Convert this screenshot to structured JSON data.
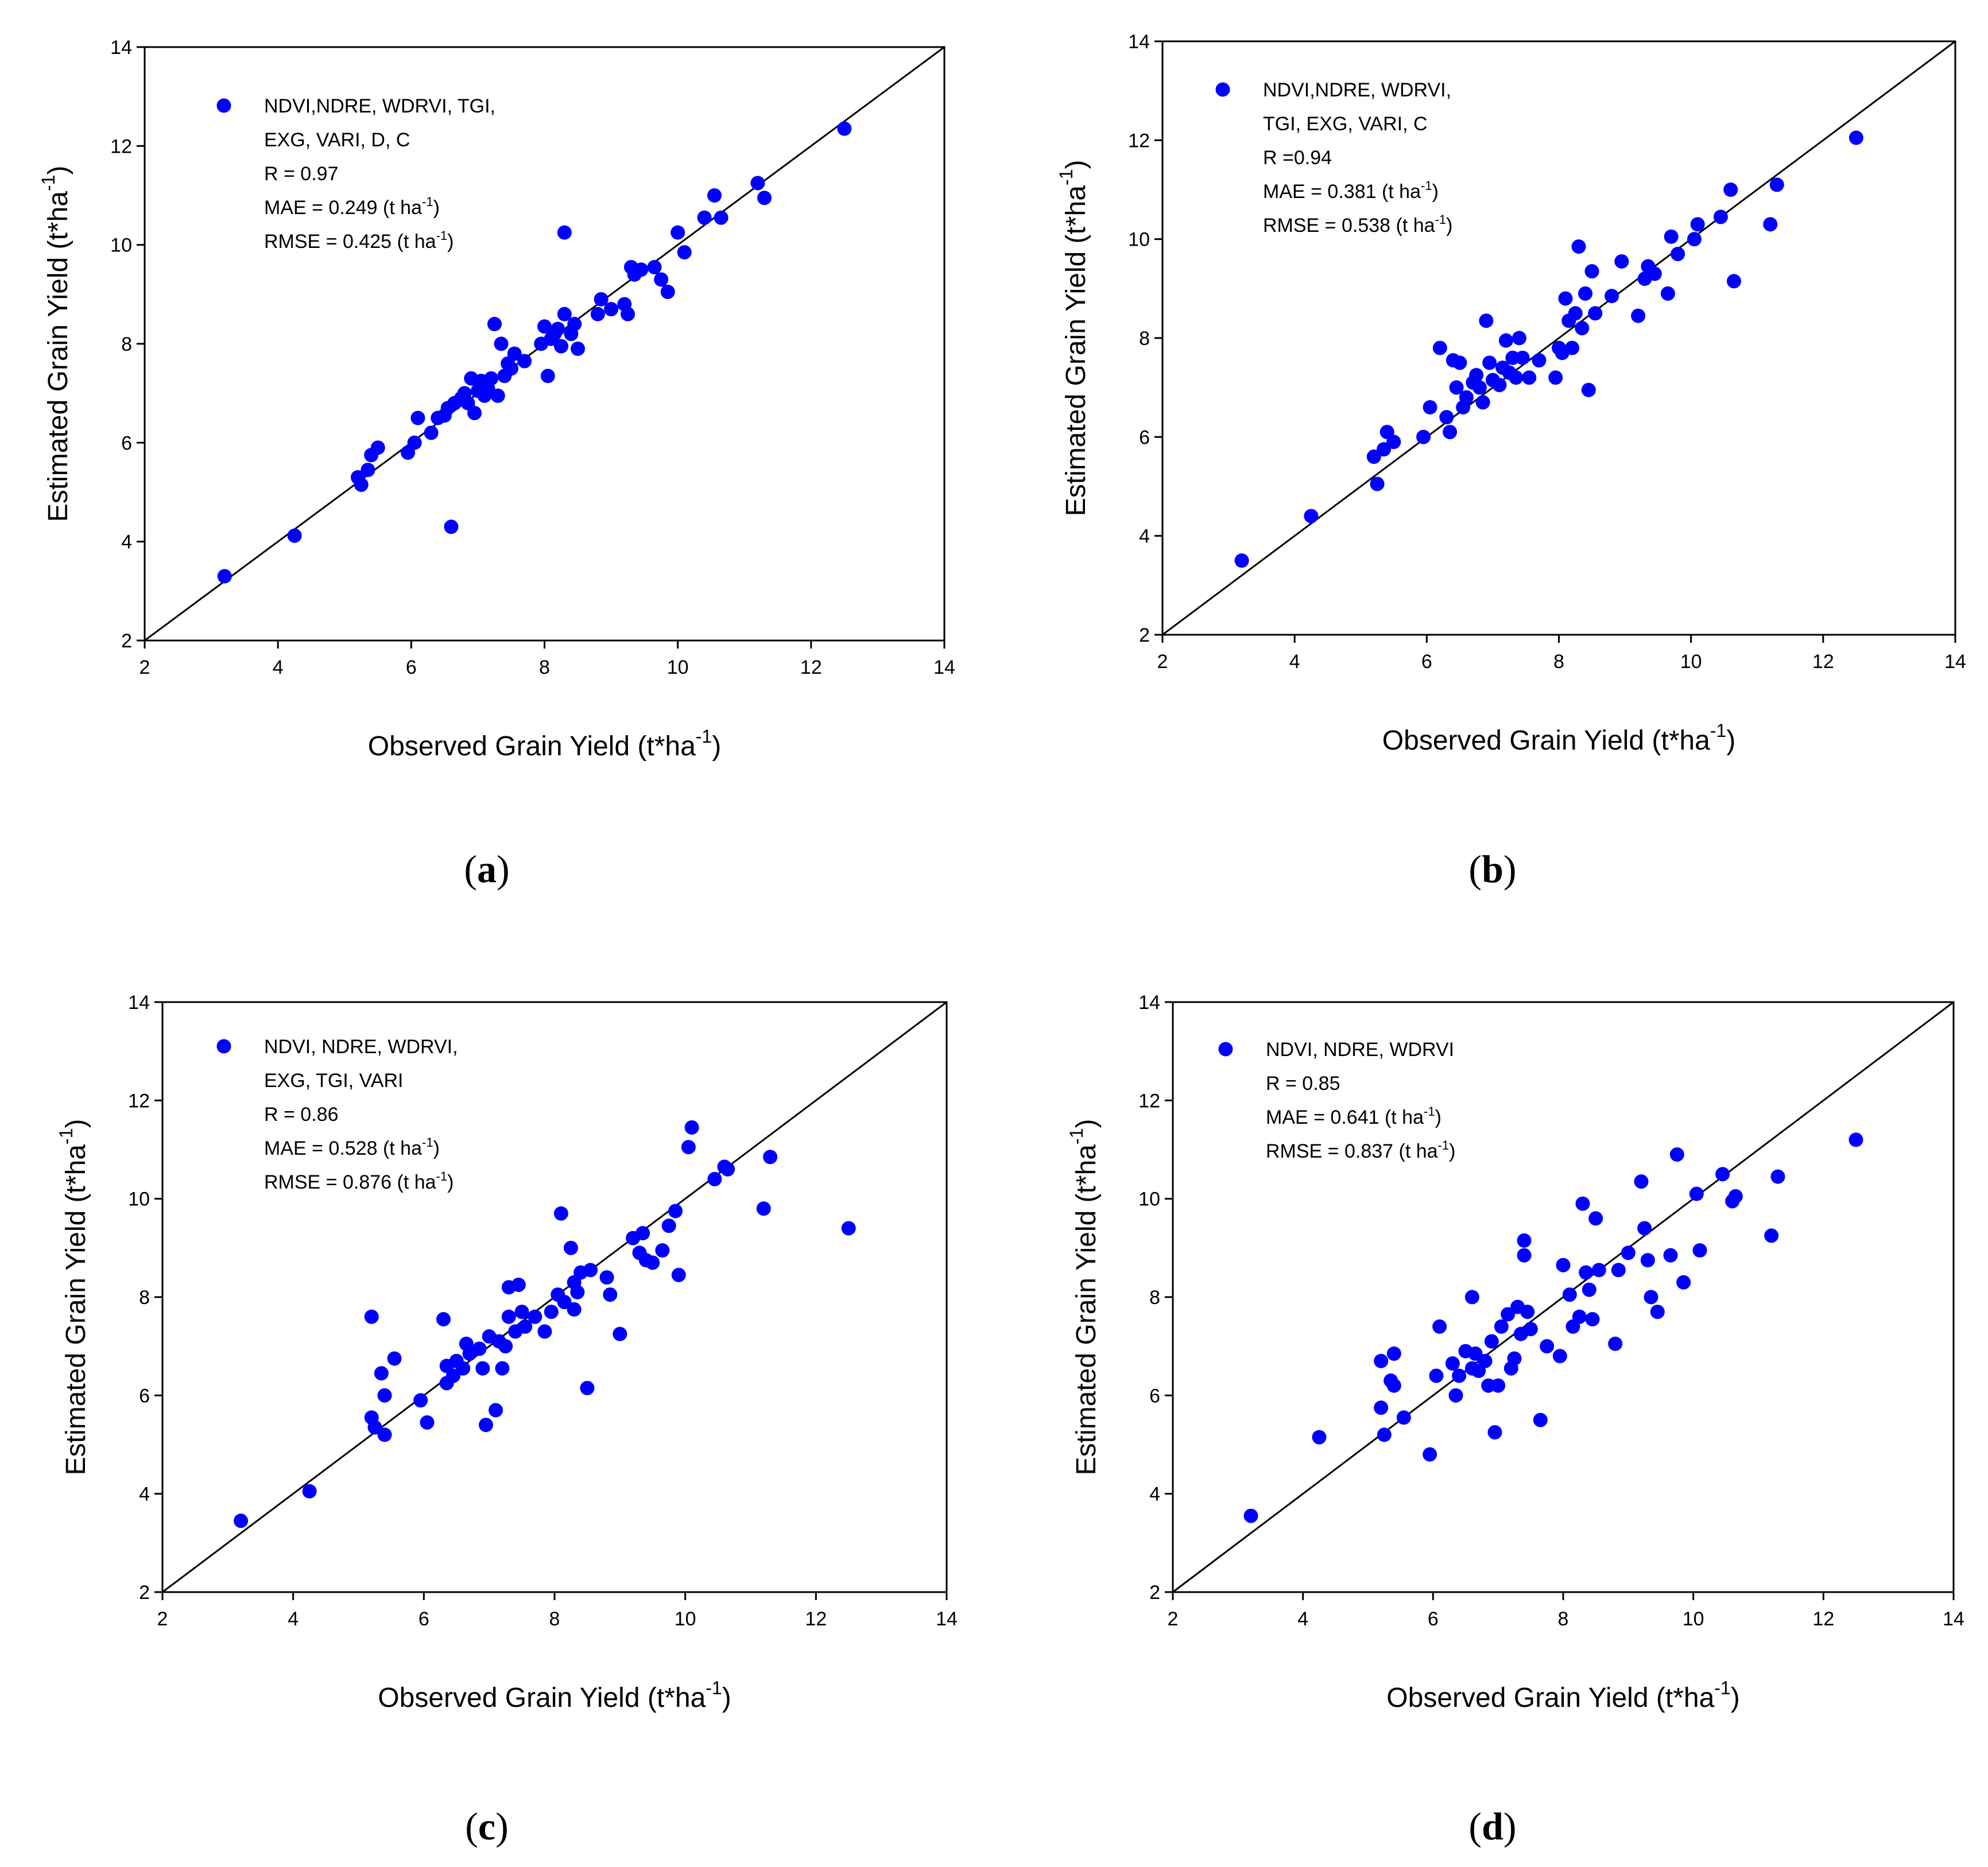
{
  "figure_labels": {
    "paren_open": "(",
    "paren_close": ")"
  },
  "chart_data": [
    {
      "id": "a",
      "type": "scatter",
      "panel_label": "a",
      "xlabel": "Observed Grain Yield (t*ha",
      "ylabel": "Estimated Grain Yield (t*ha",
      "axis_unit_sup": "-1",
      "axis_unit_close": ")",
      "xlim": [
        2,
        14
      ],
      "ylim": [
        2,
        14
      ],
      "xticks": [
        "2",
        "4",
        "6",
        "8",
        "10",
        "12",
        "14"
      ],
      "yticks": [
        "2",
        "4",
        "6",
        "8",
        "10",
        "12",
        "14"
      ],
      "reference_line": "1:1",
      "marker_color": "#0000ff",
      "legend": {
        "lines": [
          "NDVI,NDRE, WDRVI, TGI,",
          " EXG, VARI, D, C"
        ],
        "r_text": "R = 0.97",
        "mae_text": "MAE = 0.249 (t ha",
        "rmse_text": "RMSE = 0.425 (t ha",
        "unit_sup": "-1",
        "unit_close": ")"
      },
      "points": [
        [
          3.2,
          3.3
        ],
        [
          4.25,
          4.12
        ],
        [
          5.2,
          5.3
        ],
        [
          5.25,
          5.15
        ],
        [
          5.35,
          5.45
        ],
        [
          5.4,
          5.75
        ],
        [
          5.5,
          5.9
        ],
        [
          5.95,
          5.8
        ],
        [
          6.05,
          6.0
        ],
        [
          6.1,
          6.5
        ],
        [
          6.3,
          6.2
        ],
        [
          6.4,
          6.5
        ],
        [
          6.5,
          6.55
        ],
        [
          6.55,
          6.7
        ],
        [
          6.6,
          4.3
        ],
        [
          6.65,
          6.8
        ],
        [
          6.75,
          6.9
        ],
        [
          6.8,
          7.0
        ],
        [
          6.85,
          6.8
        ],
        [
          6.9,
          7.3
        ],
        [
          6.95,
          6.6
        ],
        [
          7.0,
          7.05
        ],
        [
          7.05,
          7.25
        ],
        [
          7.1,
          6.95
        ],
        [
          7.15,
          7.1
        ],
        [
          7.2,
          7.3
        ],
        [
          7.25,
          8.4
        ],
        [
          7.3,
          6.95
        ],
        [
          7.35,
          8.0
        ],
        [
          7.4,
          7.35
        ],
        [
          7.45,
          7.6
        ],
        [
          7.5,
          7.5
        ],
        [
          7.55,
          7.8
        ],
        [
          7.7,
          7.65
        ],
        [
          7.95,
          8.0
        ],
        [
          8.0,
          8.35
        ],
        [
          8.05,
          7.35
        ],
        [
          8.1,
          8.1
        ],
        [
          8.15,
          8.2
        ],
        [
          8.2,
          8.3
        ],
        [
          8.25,
          7.95
        ],
        [
          8.3,
          8.6
        ],
        [
          8.3,
          10.25
        ],
        [
          8.4,
          8.2
        ],
        [
          8.45,
          8.4
        ],
        [
          8.5,
          7.9
        ],
        [
          8.8,
          8.6
        ],
        [
          8.85,
          8.9
        ],
        [
          9.0,
          8.7
        ],
        [
          9.2,
          8.8
        ],
        [
          9.25,
          8.6
        ],
        [
          9.3,
          9.55
        ],
        [
          9.35,
          9.4
        ],
        [
          9.45,
          9.5
        ],
        [
          9.65,
          9.55
        ],
        [
          9.75,
          9.3
        ],
        [
          9.85,
          9.05
        ],
        [
          10.0,
          10.25
        ],
        [
          10.1,
          9.85
        ],
        [
          10.4,
          10.55
        ],
        [
          10.55,
          11.0
        ],
        [
          10.65,
          10.55
        ],
        [
          11.2,
          11.25
        ],
        [
          11.3,
          10.95
        ],
        [
          12.5,
          12.35
        ]
      ]
    },
    {
      "id": "b",
      "type": "scatter",
      "panel_label": "b",
      "xlabel": "Observed Grain Yield (t*ha",
      "ylabel": "Estimated Grain Yield (t*ha",
      "axis_unit_sup": "-1",
      "axis_unit_close": ")",
      "xlim": [
        2,
        14
      ],
      "ylim": [
        2,
        14
      ],
      "xticks": [
        "2",
        "4",
        "6",
        "8",
        "10",
        "12",
        "14"
      ],
      "yticks": [
        "2",
        "4",
        "6",
        "8",
        "10",
        "12",
        "14"
      ],
      "reference_line": "1:1",
      "marker_color": "#0000ff",
      "legend": {
        "lines": [
          "NDVI,NDRE, WDRVI,",
          "TGI, EXG, VARI, C"
        ],
        "r_text": "R =0.94",
        "mae_text": "MAE = 0.381 (t ha",
        "rmse_text": "RMSE = 0.538 (t ha",
        "unit_sup": "-1",
        "unit_close": ")"
      },
      "points": [
        [
          3.2,
          3.5
        ],
        [
          4.25,
          4.4
        ],
        [
          5.2,
          5.6
        ],
        [
          5.25,
          5.05
        ],
        [
          5.35,
          5.75
        ],
        [
          5.4,
          6.1
        ],
        [
          5.5,
          5.9
        ],
        [
          5.95,
          6.0
        ],
        [
          6.05,
          6.6
        ],
        [
          6.2,
          7.8
        ],
        [
          6.3,
          6.4
        ],
        [
          6.35,
          6.1
        ],
        [
          6.4,
          7.55
        ],
        [
          6.45,
          7.0
        ],
        [
          6.5,
          7.5
        ],
        [
          6.55,
          6.6
        ],
        [
          6.6,
          6.8
        ],
        [
          6.7,
          7.1
        ],
        [
          6.75,
          7.25
        ],
        [
          6.8,
          7.0
        ],
        [
          6.85,
          6.7
        ],
        [
          6.9,
          8.35
        ],
        [
          6.95,
          7.5
        ],
        [
          7.0,
          7.15
        ],
        [
          7.1,
          7.05
        ],
        [
          7.15,
          7.4
        ],
        [
          7.2,
          7.95
        ],
        [
          7.25,
          7.3
        ],
        [
          7.3,
          7.6
        ],
        [
          7.35,
          7.2
        ],
        [
          7.4,
          8.0
        ],
        [
          7.45,
          7.6
        ],
        [
          7.55,
          7.2
        ],
        [
          7.7,
          7.55
        ],
        [
          7.95,
          7.2
        ],
        [
          8.0,
          7.8
        ],
        [
          8.05,
          7.7
        ],
        [
          8.1,
          8.8
        ],
        [
          8.15,
          8.35
        ],
        [
          8.2,
          7.8
        ],
        [
          8.25,
          8.5
        ],
        [
          8.3,
          9.85
        ],
        [
          8.35,
          8.2
        ],
        [
          8.4,
          8.9
        ],
        [
          8.45,
          6.95
        ],
        [
          8.5,
          9.35
        ],
        [
          8.55,
          8.5
        ],
        [
          8.8,
          8.85
        ],
        [
          8.95,
          9.55
        ],
        [
          9.2,
          8.45
        ],
        [
          9.3,
          9.2
        ],
        [
          9.35,
          9.45
        ],
        [
          9.45,
          9.3
        ],
        [
          9.65,
          8.9
        ],
        [
          9.7,
          10.05
        ],
        [
          9.8,
          9.7
        ],
        [
          10.05,
          10.0
        ],
        [
          10.1,
          10.3
        ],
        [
          10.45,
          10.45
        ],
        [
          10.6,
          11.0
        ],
        [
          10.65,
          9.15
        ],
        [
          11.2,
          10.3
        ],
        [
          11.3,
          11.1
        ],
        [
          12.5,
          12.05
        ]
      ]
    },
    {
      "id": "c",
      "type": "scatter",
      "panel_label": "c",
      "xlabel": "Observed Grain Yield (t*ha",
      "ylabel": "Estimated Grain Yield (t*ha",
      "axis_unit_sup": "-1",
      "axis_unit_close": ")",
      "xlim": [
        2,
        14
      ],
      "ylim": [
        2,
        14
      ],
      "xticks": [
        "2",
        "4",
        "6",
        "8",
        "10",
        "12",
        "14"
      ],
      "yticks": [
        "2",
        "4",
        "6",
        "8",
        "10",
        "12",
        "14"
      ],
      "reference_line": "1:1",
      "marker_color": "#0000ff",
      "legend": {
        "lines": [
          "NDVI, NDRE, WDRVI,",
          "EXG, TGI, VARI"
        ],
        "r_text": "R = 0.86",
        "mae_text": "MAE = 0.528 (t ha",
        "rmse_text": "RMSE = 0.876 (t ha",
        "unit_sup": "-1",
        "unit_close": ")"
      },
      "points": [
        [
          3.2,
          3.45
        ],
        [
          4.25,
          4.05
        ],
        [
          5.2,
          7.6
        ],
        [
          5.2,
          5.55
        ],
        [
          5.25,
          5.35
        ],
        [
          5.35,
          6.45
        ],
        [
          5.4,
          6.0
        ],
        [
          5.4,
          5.2
        ],
        [
          5.55,
          6.75
        ],
        [
          5.95,
          5.9
        ],
        [
          6.05,
          5.45
        ],
        [
          6.3,
          7.55
        ],
        [
          6.35,
          6.6
        ],
        [
          6.35,
          6.25
        ],
        [
          6.45,
          6.4
        ],
        [
          6.5,
          6.7
        ],
        [
          6.6,
          6.55
        ],
        [
          6.65,
          7.05
        ],
        [
          6.7,
          6.85
        ],
        [
          6.85,
          6.95
        ],
        [
          6.9,
          6.55
        ],
        [
          6.95,
          5.4
        ],
        [
          7.0,
          7.2
        ],
        [
          7.1,
          5.7
        ],
        [
          7.15,
          7.1
        ],
        [
          7.2,
          6.55
        ],
        [
          7.25,
          7.0
        ],
        [
          7.3,
          7.6
        ],
        [
          7.3,
          8.2
        ],
        [
          7.4,
          7.3
        ],
        [
          7.45,
          8.25
        ],
        [
          7.5,
          7.7
        ],
        [
          7.55,
          7.4
        ],
        [
          7.7,
          7.6
        ],
        [
          7.85,
          7.3
        ],
        [
          7.95,
          7.7
        ],
        [
          8.05,
          8.05
        ],
        [
          8.1,
          9.7
        ],
        [
          8.15,
          7.9
        ],
        [
          8.25,
          9.0
        ],
        [
          8.3,
          8.3
        ],
        [
          8.3,
          7.75
        ],
        [
          8.35,
          8.1
        ],
        [
          8.4,
          8.5
        ],
        [
          8.5,
          6.15
        ],
        [
          8.55,
          8.55
        ],
        [
          8.8,
          8.4
        ],
        [
          8.85,
          8.05
        ],
        [
          9.0,
          7.25
        ],
        [
          9.2,
          9.2
        ],
        [
          9.3,
          8.9
        ],
        [
          9.35,
          9.3
        ],
        [
          9.4,
          8.75
        ],
        [
          9.5,
          8.7
        ],
        [
          9.65,
          8.95
        ],
        [
          9.75,
          9.45
        ],
        [
          9.85,
          9.75
        ],
        [
          9.9,
          8.45
        ],
        [
          10.05,
          11.05
        ],
        [
          10.1,
          11.45
        ],
        [
          10.45,
          10.4
        ],
        [
          10.6,
          10.65
        ],
        [
          10.65,
          10.6
        ],
        [
          11.2,
          9.8
        ],
        [
          11.3,
          10.85
        ],
        [
          12.5,
          9.4
        ]
      ]
    },
    {
      "id": "d",
      "type": "scatter",
      "panel_label": "d",
      "xlabel": "Observed Grain Yield (t*ha",
      "ylabel": "Estimated Grain Yield (t*ha",
      "axis_unit_sup": "-1",
      "axis_unit_close": ")",
      "xlim": [
        2,
        14
      ],
      "ylim": [
        2,
        14
      ],
      "xticks": [
        "2",
        "4",
        "6",
        "8",
        "10",
        "12",
        "14"
      ],
      "yticks": [
        "2",
        "4",
        "6",
        "8",
        "10",
        "12",
        "14"
      ],
      "reference_line": "1:1",
      "marker_color": "#0000ff",
      "legend": {
        "lines": [
          "NDVI, NDRE, WDRVI"
        ],
        "r_text": "R = 0.85",
        "mae_text": "MAE = 0.641 (t ha",
        "rmse_text": "RMSE = 0.837 (t ha",
        "unit_sup": "-1",
        "unit_close": ")"
      },
      "points": [
        [
          3.2,
          3.55
        ],
        [
          4.25,
          5.15
        ],
        [
          5.2,
          6.7
        ],
        [
          5.2,
          5.75
        ],
        [
          5.25,
          5.2
        ],
        [
          5.35,
          6.3
        ],
        [
          5.4,
          6.85
        ],
        [
          5.4,
          6.2
        ],
        [
          5.55,
          5.55
        ],
        [
          5.95,
          4.8
        ],
        [
          6.05,
          6.4
        ],
        [
          6.1,
          7.4
        ],
        [
          6.3,
          6.65
        ],
        [
          6.35,
          6.0
        ],
        [
          6.4,
          6.4
        ],
        [
          6.5,
          6.9
        ],
        [
          6.6,
          8.0
        ],
        [
          6.6,
          6.55
        ],
        [
          6.65,
          6.85
        ],
        [
          6.7,
          6.5
        ],
        [
          6.8,
          6.7
        ],
        [
          6.85,
          6.2
        ],
        [
          6.9,
          7.1
        ],
        [
          6.95,
          5.25
        ],
        [
          7.0,
          6.2
        ],
        [
          7.05,
          7.4
        ],
        [
          7.15,
          7.65
        ],
        [
          7.2,
          6.55
        ],
        [
          7.25,
          6.75
        ],
        [
          7.3,
          7.8
        ],
        [
          7.35,
          7.25
        ],
        [
          7.4,
          9.15
        ],
        [
          7.4,
          8.85
        ],
        [
          7.45,
          7.7
        ],
        [
          7.5,
          7.35
        ],
        [
          7.65,
          5.5
        ],
        [
          7.75,
          7.0
        ],
        [
          7.95,
          6.8
        ],
        [
          8.0,
          8.65
        ],
        [
          8.1,
          8.05
        ],
        [
          8.15,
          7.4
        ],
        [
          8.25,
          7.6
        ],
        [
          8.3,
          9.9
        ],
        [
          8.35,
          8.5
        ],
        [
          8.4,
          8.15
        ],
        [
          8.45,
          7.55
        ],
        [
          8.5,
          9.6
        ],
        [
          8.55,
          8.55
        ],
        [
          8.8,
          7.05
        ],
        [
          8.85,
          8.55
        ],
        [
          9.0,
          8.9
        ],
        [
          9.2,
          10.35
        ],
        [
          9.25,
          9.4
        ],
        [
          9.3,
          8.75
        ],
        [
          9.35,
          8.0
        ],
        [
          9.45,
          7.7
        ],
        [
          9.65,
          8.85
        ],
        [
          9.75,
          10.9
        ],
        [
          9.85,
          8.3
        ],
        [
          10.05,
          10.1
        ],
        [
          10.1,
          8.95
        ],
        [
          10.45,
          10.5
        ],
        [
          10.6,
          9.95
        ],
        [
          10.65,
          10.05
        ],
        [
          11.2,
          9.25
        ],
        [
          11.3,
          10.45
        ],
        [
          12.5,
          11.2
        ]
      ]
    }
  ]
}
